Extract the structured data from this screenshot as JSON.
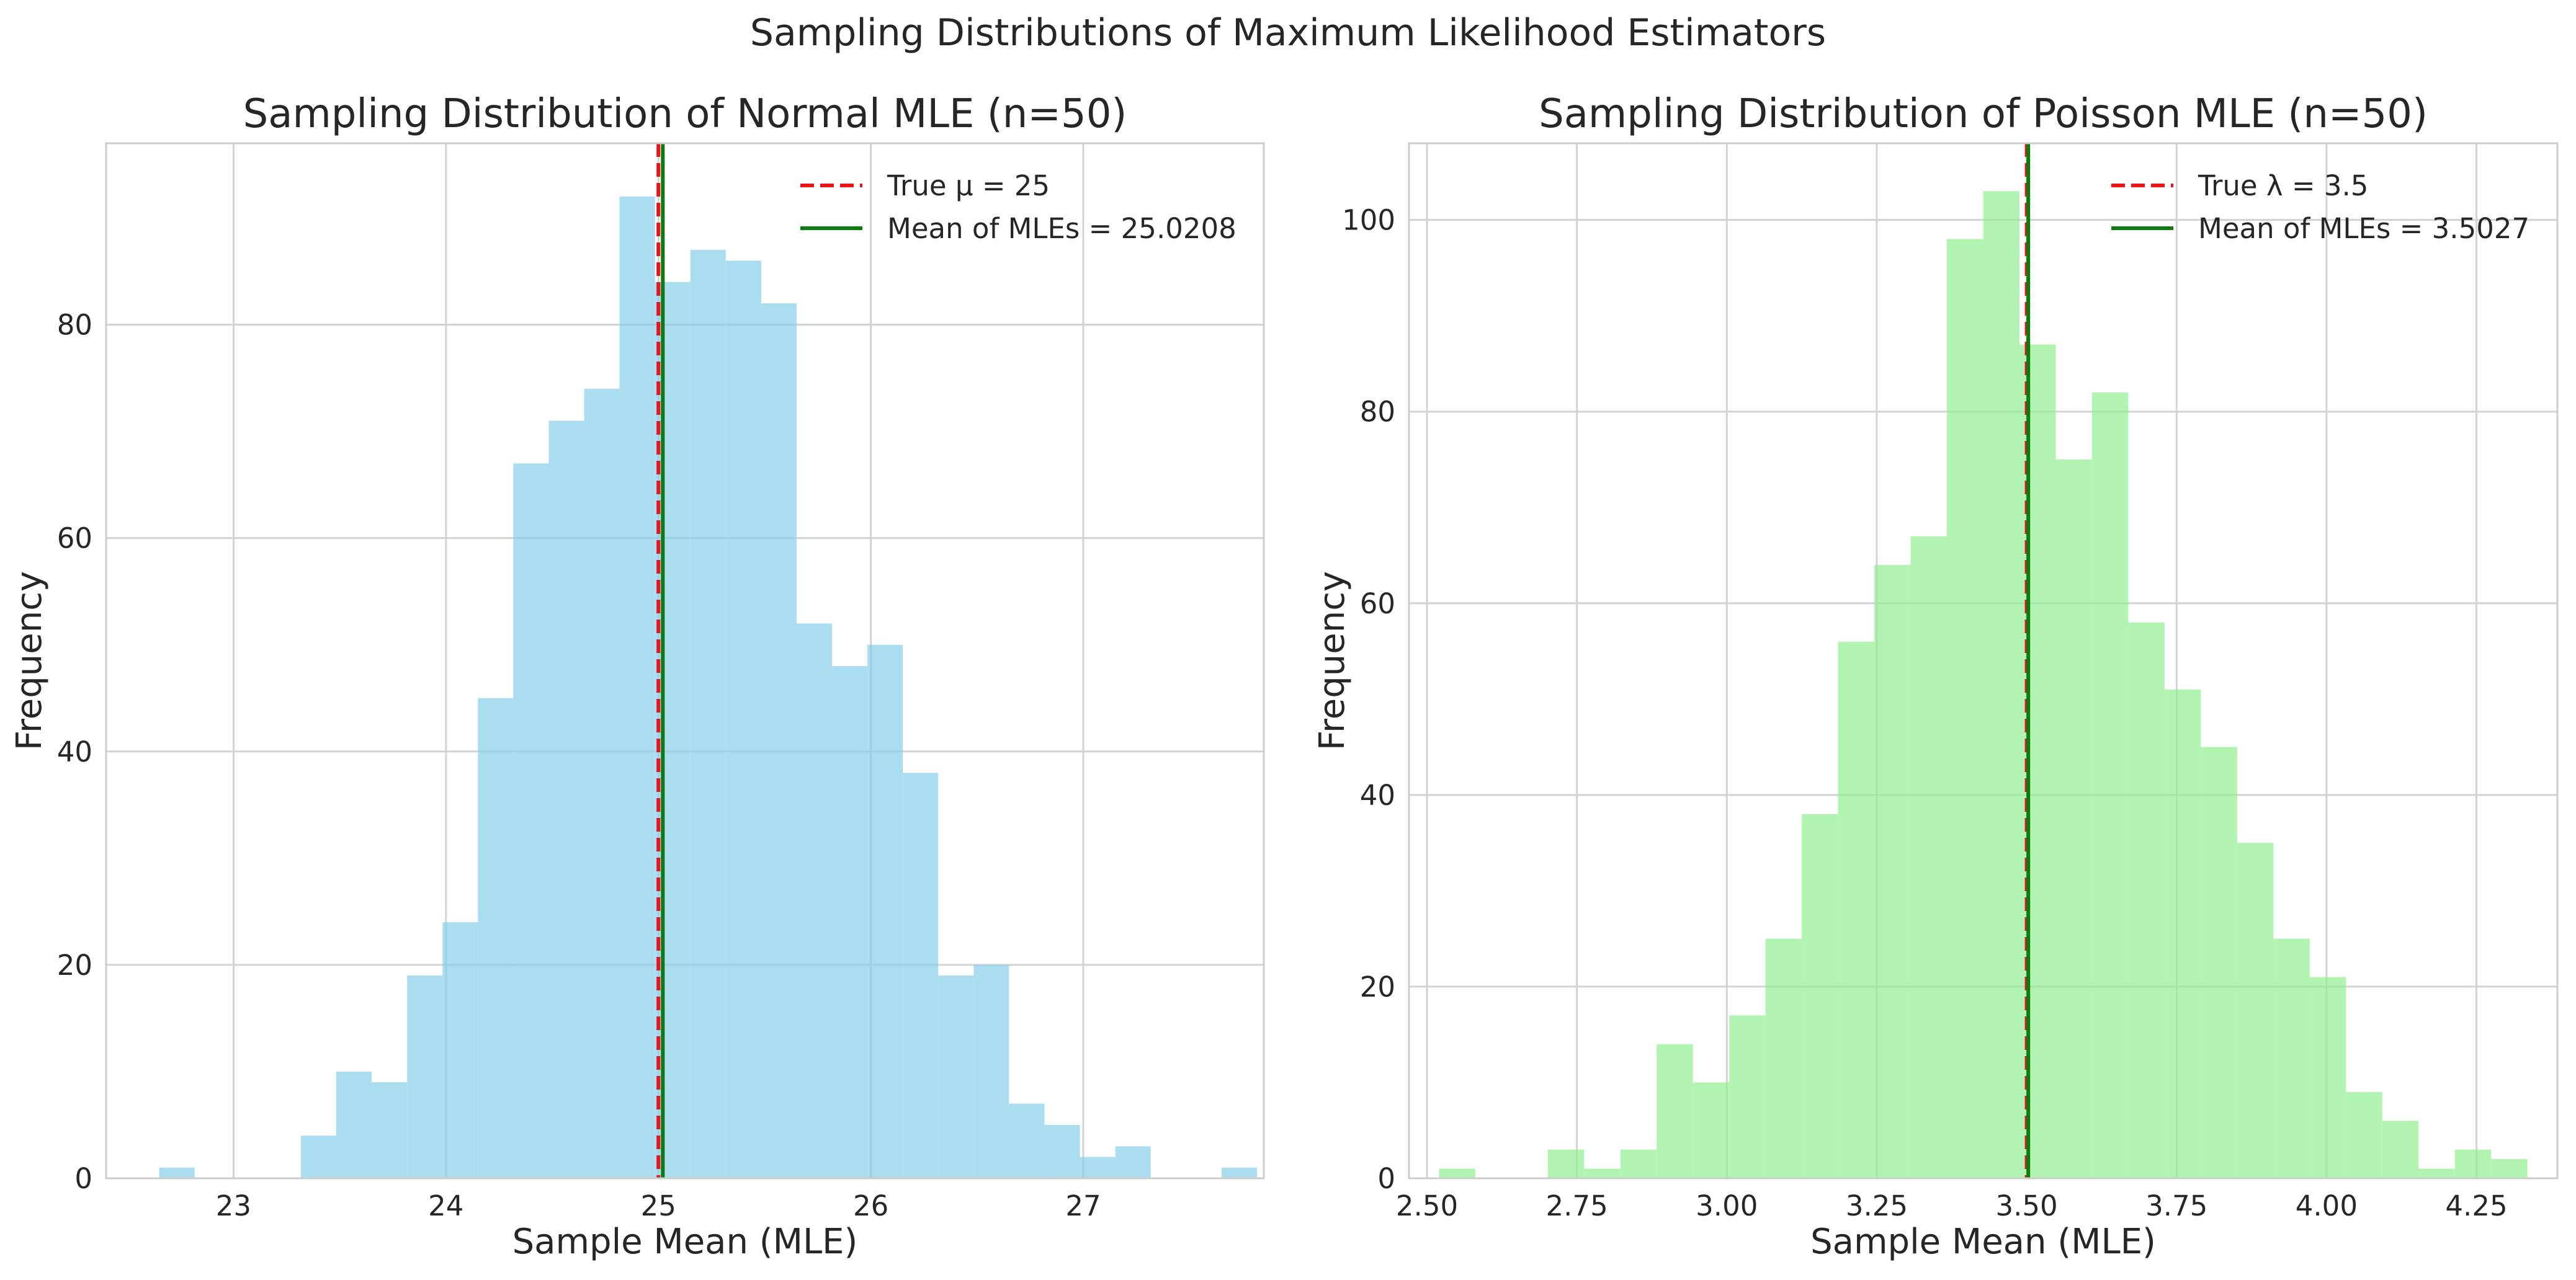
{
  "figure": {
    "suptitle": "Sampling Distributions of Maximum Likelihood Estimators"
  },
  "chart_data": [
    {
      "type": "bar",
      "title": "Sampling Distribution of Normal MLE (n=50)",
      "xlabel": "Sample Mean (MLE)",
      "ylabel": "Frequency",
      "xlim": [
        22.4,
        27.85
      ],
      "ylim": [
        0,
        97
      ],
      "xticks": [
        23,
        24,
        25,
        26,
        27
      ],
      "yticks": [
        0,
        20,
        40,
        60,
        80
      ],
      "bin_start": 22.65,
      "bin_width": 0.1667,
      "values": [
        1,
        0,
        0,
        0,
        4,
        10,
        9,
        19,
        24,
        45,
        67,
        71,
        74,
        92,
        84,
        87,
        86,
        82,
        52,
        48,
        50,
        38,
        19,
        20,
        7,
        5,
        2,
        3,
        0,
        0,
        1
      ],
      "bar_color": "#87CEEB",
      "vlines": [
        {
          "label": "True μ = 25",
          "x": 25.0,
          "color": "#e8141c",
          "style": "dashed"
        },
        {
          "label": "Mean of MLEs = 25.0208",
          "x": 25.0208,
          "color": "#0d7a0d",
          "style": "solid"
        }
      ],
      "legend": "top-right",
      "grid": true
    },
    {
      "type": "bar",
      "title": "Sampling Distribution of Poisson MLE (n=50)",
      "xlabel": "Sample Mean (MLE)",
      "ylabel": "Frequency",
      "xlim": [
        2.47,
        4.385
      ],
      "ylim": [
        0,
        108
      ],
      "xticks": [
        2.5,
        2.75,
        3.0,
        3.25,
        3.5,
        3.75,
        4.0,
        4.25
      ],
      "xtick_labels": [
        "2.50",
        "2.75",
        "3.00",
        "3.25",
        "3.50",
        "3.75",
        "4.00",
        "4.25"
      ],
      "yticks": [
        0,
        20,
        40,
        60,
        80,
        100
      ],
      "bin_start": 2.52,
      "bin_width": 0.0605,
      "values": [
        1,
        0,
        0,
        3,
        1,
        3,
        14,
        10,
        17,
        25,
        38,
        56,
        64,
        67,
        98,
        103,
        87,
        75,
        82,
        58,
        51,
        45,
        35,
        25,
        21,
        9,
        6,
        1,
        3,
        2
      ],
      "bar_color": "#90EE90",
      "vlines": [
        {
          "label": "True λ = 3.5",
          "x": 3.5,
          "color": "#e8141c",
          "style": "dashed"
        },
        {
          "label": "Mean of MLEs = 3.5027",
          "x": 3.5027,
          "color": "#0d7a0d",
          "style": "solid"
        }
      ],
      "legend": "top-right",
      "grid": true
    }
  ]
}
